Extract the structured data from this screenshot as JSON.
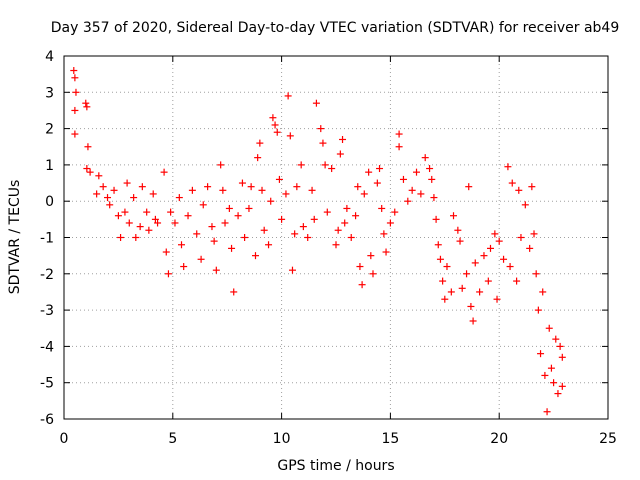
{
  "chart_data": {
    "type": "scatter",
    "title": "Day 357 of 2020, Sidereal Day-to-day VTEC variation (SDTVAR) for receiver ab49",
    "xlabel": "GPS time / hours",
    "ylabel": "SDTVAR / TECUs",
    "xlim": [
      0,
      25
    ],
    "ylim": [
      -6,
      4
    ],
    "xticks": [
      "0",
      "5",
      "10",
      "15",
      "20",
      "25"
    ],
    "yticks": [
      "4",
      "3",
      "2",
      "1",
      "0",
      "-1",
      "-2",
      "-3",
      "-4",
      "-5",
      "-6"
    ],
    "grid": true,
    "marker": "+",
    "series_color": "#ff0000",
    "series": [
      {
        "name": "SDTVAR",
        "points": [
          [
            0.45,
            3.6
          ],
          [
            0.5,
            3.4
          ],
          [
            0.5,
            2.5
          ],
          [
            0.55,
            3.0
          ],
          [
            0.5,
            1.85
          ],
          [
            1.0,
            2.7
          ],
          [
            1.05,
            2.6
          ],
          [
            1.1,
            1.5
          ],
          [
            1.05,
            0.9
          ],
          [
            1.2,
            0.8
          ],
          [
            1.5,
            0.2
          ],
          [
            1.6,
            0.7
          ],
          [
            1.8,
            0.4
          ],
          [
            2.0,
            0.1
          ],
          [
            2.1,
            -0.1
          ],
          [
            2.3,
            0.3
          ],
          [
            2.5,
            -0.4
          ],
          [
            2.6,
            -1.0
          ],
          [
            2.8,
            -0.3
          ],
          [
            2.9,
            0.5
          ],
          [
            3.0,
            -0.6
          ],
          [
            3.2,
            0.1
          ],
          [
            3.3,
            -1.0
          ],
          [
            3.5,
            -0.7
          ],
          [
            3.6,
            0.4
          ],
          [
            3.8,
            -0.3
          ],
          [
            3.9,
            -0.8
          ],
          [
            4.1,
            0.2
          ],
          [
            4.2,
            -0.5
          ],
          [
            4.3,
            -0.6
          ],
          [
            4.6,
            0.8
          ],
          [
            4.7,
            -1.4
          ],
          [
            4.8,
            -2.0
          ],
          [
            4.9,
            -0.3
          ],
          [
            5.1,
            -0.6
          ],
          [
            5.3,
            0.1
          ],
          [
            5.4,
            -1.2
          ],
          [
            5.5,
            -1.8
          ],
          [
            5.7,
            -0.4
          ],
          [
            5.9,
            0.3
          ],
          [
            6.1,
            -0.9
          ],
          [
            6.3,
            -1.6
          ],
          [
            6.4,
            -0.1
          ],
          [
            6.6,
            0.4
          ],
          [
            6.8,
            -0.7
          ],
          [
            6.9,
            -1.1
          ],
          [
            7.0,
            -1.9
          ],
          [
            7.2,
            1.0
          ],
          [
            7.3,
            0.3
          ],
          [
            7.4,
            -0.6
          ],
          [
            7.6,
            -0.2
          ],
          [
            7.7,
            -1.3
          ],
          [
            7.8,
            -2.5
          ],
          [
            8.0,
            -0.4
          ],
          [
            8.2,
            0.5
          ],
          [
            8.3,
            -1.0
          ],
          [
            8.5,
            -0.2
          ],
          [
            8.6,
            0.4
          ],
          [
            8.8,
            -1.5
          ],
          [
            8.9,
            1.2
          ],
          [
            9.0,
            1.6
          ],
          [
            9.1,
            0.3
          ],
          [
            9.2,
            -0.8
          ],
          [
            9.4,
            -1.2
          ],
          [
            9.5,
            0.0
          ],
          [
            9.6,
            2.3
          ],
          [
            9.7,
            2.1
          ],
          [
            9.8,
            1.9
          ],
          [
            9.9,
            0.6
          ],
          [
            10.0,
            -0.5
          ],
          [
            10.2,
            0.2
          ],
          [
            10.3,
            2.9
          ],
          [
            10.4,
            1.8
          ],
          [
            10.5,
            -1.9
          ],
          [
            10.6,
            -0.9
          ],
          [
            10.7,
            0.4
          ],
          [
            10.9,
            1.0
          ],
          [
            11.0,
            -0.7
          ],
          [
            11.2,
            -1.0
          ],
          [
            11.4,
            0.3
          ],
          [
            11.5,
            -0.5
          ],
          [
            11.6,
            2.7
          ],
          [
            11.8,
            2.0
          ],
          [
            11.9,
            1.6
          ],
          [
            12.0,
            1.0
          ],
          [
            12.1,
            -0.3
          ],
          [
            12.3,
            0.9
          ],
          [
            12.5,
            -1.2
          ],
          [
            12.6,
            -0.8
          ],
          [
            12.7,
            1.3
          ],
          [
            12.8,
            1.7
          ],
          [
            12.9,
            -0.6
          ],
          [
            13.0,
            -0.2
          ],
          [
            13.2,
            -1.0
          ],
          [
            13.4,
            -0.4
          ],
          [
            13.5,
            0.4
          ],
          [
            13.6,
            -1.8
          ],
          [
            13.7,
            -2.3
          ],
          [
            13.8,
            0.2
          ],
          [
            14.0,
            0.8
          ],
          [
            14.1,
            -1.5
          ],
          [
            14.2,
            -2.0
          ],
          [
            14.4,
            0.5
          ],
          [
            14.5,
            0.9
          ],
          [
            14.6,
            -0.2
          ],
          [
            14.7,
            -0.9
          ],
          [
            14.8,
            -1.4
          ],
          [
            15.0,
            -0.6
          ],
          [
            15.2,
            -0.3
          ],
          [
            15.4,
            1.85
          ],
          [
            15.4,
            1.5
          ],
          [
            15.6,
            0.6
          ],
          [
            15.8,
            0.0
          ],
          [
            16.0,
            0.3
          ],
          [
            16.2,
            0.8
          ],
          [
            16.4,
            0.2
          ],
          [
            16.6,
            1.2
          ],
          [
            16.8,
            0.9
          ],
          [
            16.9,
            0.6
          ],
          [
            17.0,
            0.1
          ],
          [
            17.1,
            -0.5
          ],
          [
            17.2,
            -1.2
          ],
          [
            17.3,
            -1.6
          ],
          [
            17.4,
            -2.2
          ],
          [
            17.5,
            -2.7
          ],
          [
            17.6,
            -1.8
          ],
          [
            17.8,
            -2.5
          ],
          [
            17.9,
            -0.4
          ],
          [
            18.1,
            -0.8
          ],
          [
            18.2,
            -1.1
          ],
          [
            18.3,
            -2.4
          ],
          [
            18.5,
            -2.0
          ],
          [
            18.6,
            0.4
          ],
          [
            18.7,
            -2.9
          ],
          [
            18.8,
            -3.3
          ],
          [
            18.9,
            -1.7
          ],
          [
            19.1,
            -2.5
          ],
          [
            19.3,
            -1.5
          ],
          [
            19.5,
            -2.2
          ],
          [
            19.6,
            -1.3
          ],
          [
            19.8,
            -0.9
          ],
          [
            19.9,
            -2.7
          ],
          [
            20.0,
            -1.1
          ],
          [
            20.2,
            -1.6
          ],
          [
            20.4,
            0.95
          ],
          [
            20.5,
            -1.8
          ],
          [
            20.6,
            0.5
          ],
          [
            20.8,
            -2.2
          ],
          [
            20.9,
            0.3
          ],
          [
            21.0,
            -1.0
          ],
          [
            21.2,
            -0.1
          ],
          [
            21.4,
            -1.3
          ],
          [
            21.5,
            0.4
          ],
          [
            21.6,
            -0.9
          ],
          [
            21.7,
            -2.0
          ],
          [
            21.8,
            -3.0
          ],
          [
            21.9,
            -4.2
          ],
          [
            22.0,
            -2.5
          ],
          [
            22.1,
            -4.8
          ],
          [
            22.2,
            -5.8
          ],
          [
            22.3,
            -3.5
          ],
          [
            22.4,
            -4.6
          ],
          [
            22.5,
            -5.0
          ],
          [
            22.6,
            -3.8
          ],
          [
            22.7,
            -5.3
          ],
          [
            22.8,
            -4.0
          ],
          [
            22.9,
            -4.3
          ],
          [
            22.9,
            -5.1
          ]
        ]
      }
    ]
  }
}
